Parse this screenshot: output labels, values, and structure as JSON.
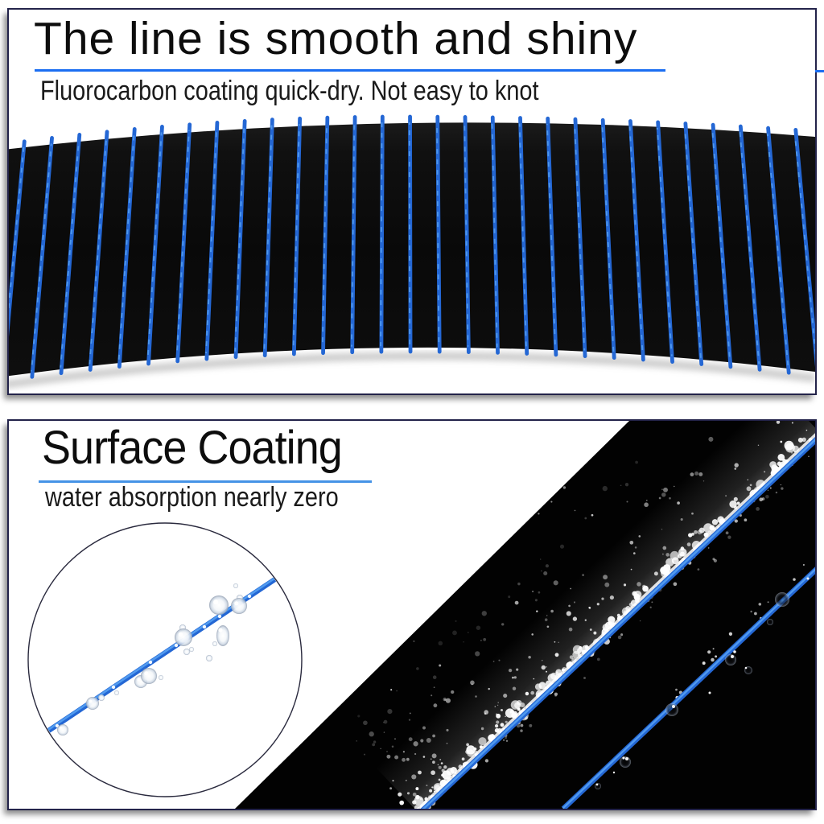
{
  "product_panels": {
    "panel1": {
      "headline": "The line is smooth and shiny",
      "subtitle": "Fluorocarbon coating quick-dry. Not easy to knot"
    },
    "panel2": {
      "headline": "Surface Coating",
      "subtitle": "water absorption nearly zero"
    }
  },
  "colors": {
    "headline_text": "#0d0d0d",
    "subtitle_text": "#1a1a1a",
    "underline1": "#1b6ef2",
    "underline2": "#4593e6",
    "panel_border": "#23234a",
    "line_blue": "#2467d4",
    "line_blue_light": "#55a0f2",
    "spool_black": "#0a0a0a",
    "photo_black": "#020202"
  }
}
